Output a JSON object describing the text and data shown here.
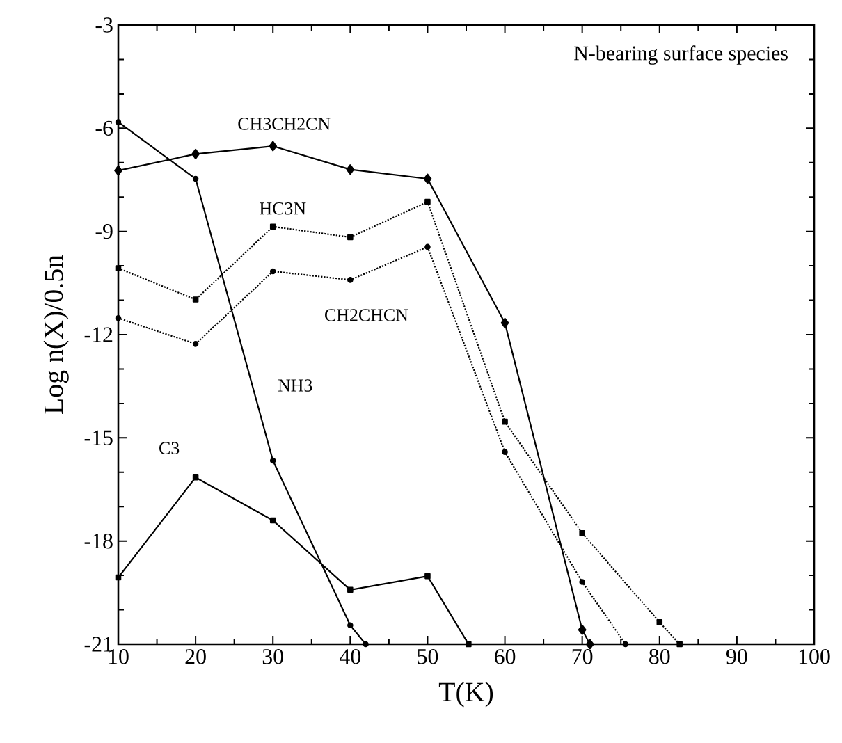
{
  "chart_data": {
    "type": "line",
    "title": "N-bearing surface species",
    "xlabel": "T(K)",
    "ylabel": "Log n(X)/0.5n",
    "xlim": [
      10,
      100
    ],
    "xticks": [
      10,
      20,
      30,
      40,
      50,
      60,
      70,
      80,
      90,
      100
    ],
    "ylim": [
      -21,
      -3
    ],
    "yticks": [
      -21,
      -18,
      -15,
      -12,
      -9,
      -6,
      -3
    ],
    "grid": false,
    "series": [
      {
        "name": "CH3CH2CN",
        "color": "#000000",
        "marker": "diamond",
        "line_style": "solid",
        "x": [
          10,
          20,
          30,
          40,
          50,
          60,
          70,
          71
        ],
        "values": [
          -7.23,
          -6.75,
          -6.52,
          -7.2,
          -7.47,
          -11.66,
          -20.58,
          -21
        ]
      },
      {
        "name": "NH3",
        "color": "#000000",
        "marker": "circle",
        "line_style": "solid",
        "x": [
          10,
          20,
          30,
          40,
          42
        ],
        "values": [
          -5.82,
          -7.47,
          -15.66,
          -20.45,
          -21
        ]
      },
      {
        "name": "HC3N",
        "color": "#000000",
        "marker": "square",
        "line_style": "dotted",
        "x": [
          10,
          20,
          30,
          40,
          50,
          60,
          70,
          80,
          82.6
        ],
        "values": [
          -10.07,
          -10.98,
          -8.86,
          -9.17,
          -8.14,
          -14.53,
          -17.77,
          -20.36,
          -21
        ]
      },
      {
        "name": "CH2CHCN",
        "color": "#000000",
        "marker": "circle",
        "line_style": "dotted",
        "x": [
          10,
          20,
          30,
          40,
          50,
          60,
          70,
          75.6
        ],
        "values": [
          -11.52,
          -12.27,
          -10.16,
          -10.41,
          -9.45,
          -15.41,
          -19.19,
          -21
        ]
      },
      {
        "name": "C3",
        "color": "#000000",
        "marker": "square",
        "line_style": "solid",
        "x": [
          10,
          20,
          30,
          40,
          50,
          55.3
        ],
        "values": [
          -19.06,
          -16.15,
          -17.4,
          -19.42,
          -19.02,
          -21
        ]
      }
    ]
  }
}
